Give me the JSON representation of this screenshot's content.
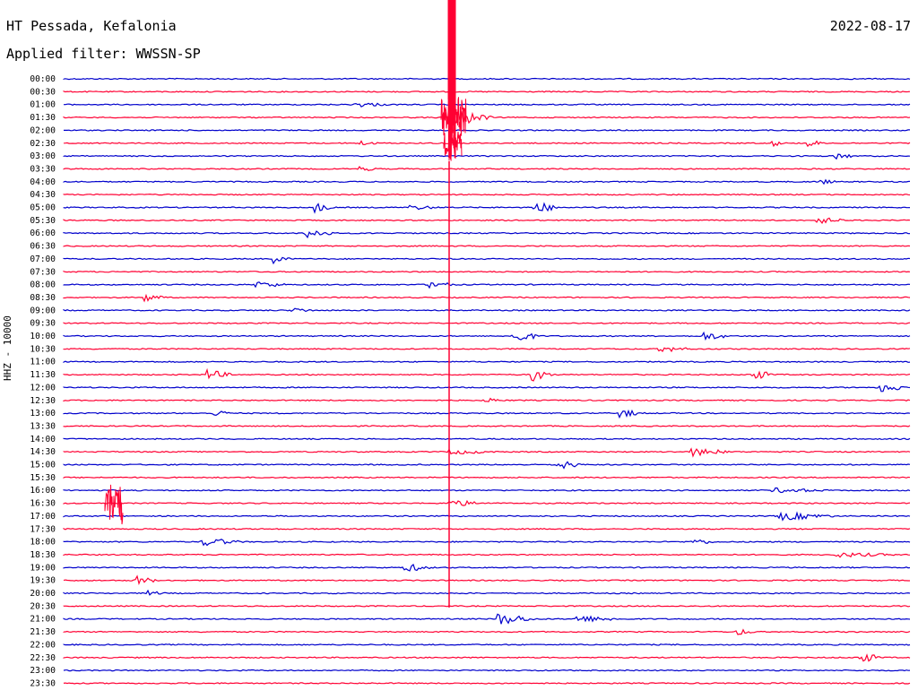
{
  "header": {
    "station": "HT Pessada, Kefalonia",
    "filter": "Applied filter: WWSSN-SP",
    "date": "2022-08-17"
  },
  "chart_data": {
    "type": "line",
    "ylabel": "HHZ - 10000",
    "colors": {
      "even": "#0000cc",
      "odd": "#ff0033"
    },
    "traces": [
      "00:00",
      "00:30",
      "01:00",
      "01:30",
      "02:00",
      "02:30",
      "03:00",
      "03:30",
      "04:00",
      "04:30",
      "05:00",
      "05:30",
      "06:00",
      "06:30",
      "07:00",
      "07:30",
      "08:00",
      "08:30",
      "09:00",
      "09:30",
      "10:00",
      "10:30",
      "11:00",
      "11:30",
      "12:00",
      "12:30",
      "13:00",
      "13:30",
      "14:00",
      "14:30",
      "15:00",
      "15:30",
      "16:00",
      "16:30",
      "17:00",
      "17:30",
      "18:00",
      "18:30",
      "19:00",
      "19:30",
      "20:00",
      "20:30",
      "21:00",
      "21:30",
      "22:00",
      "22:30",
      "23:00",
      "23:30"
    ]
  }
}
